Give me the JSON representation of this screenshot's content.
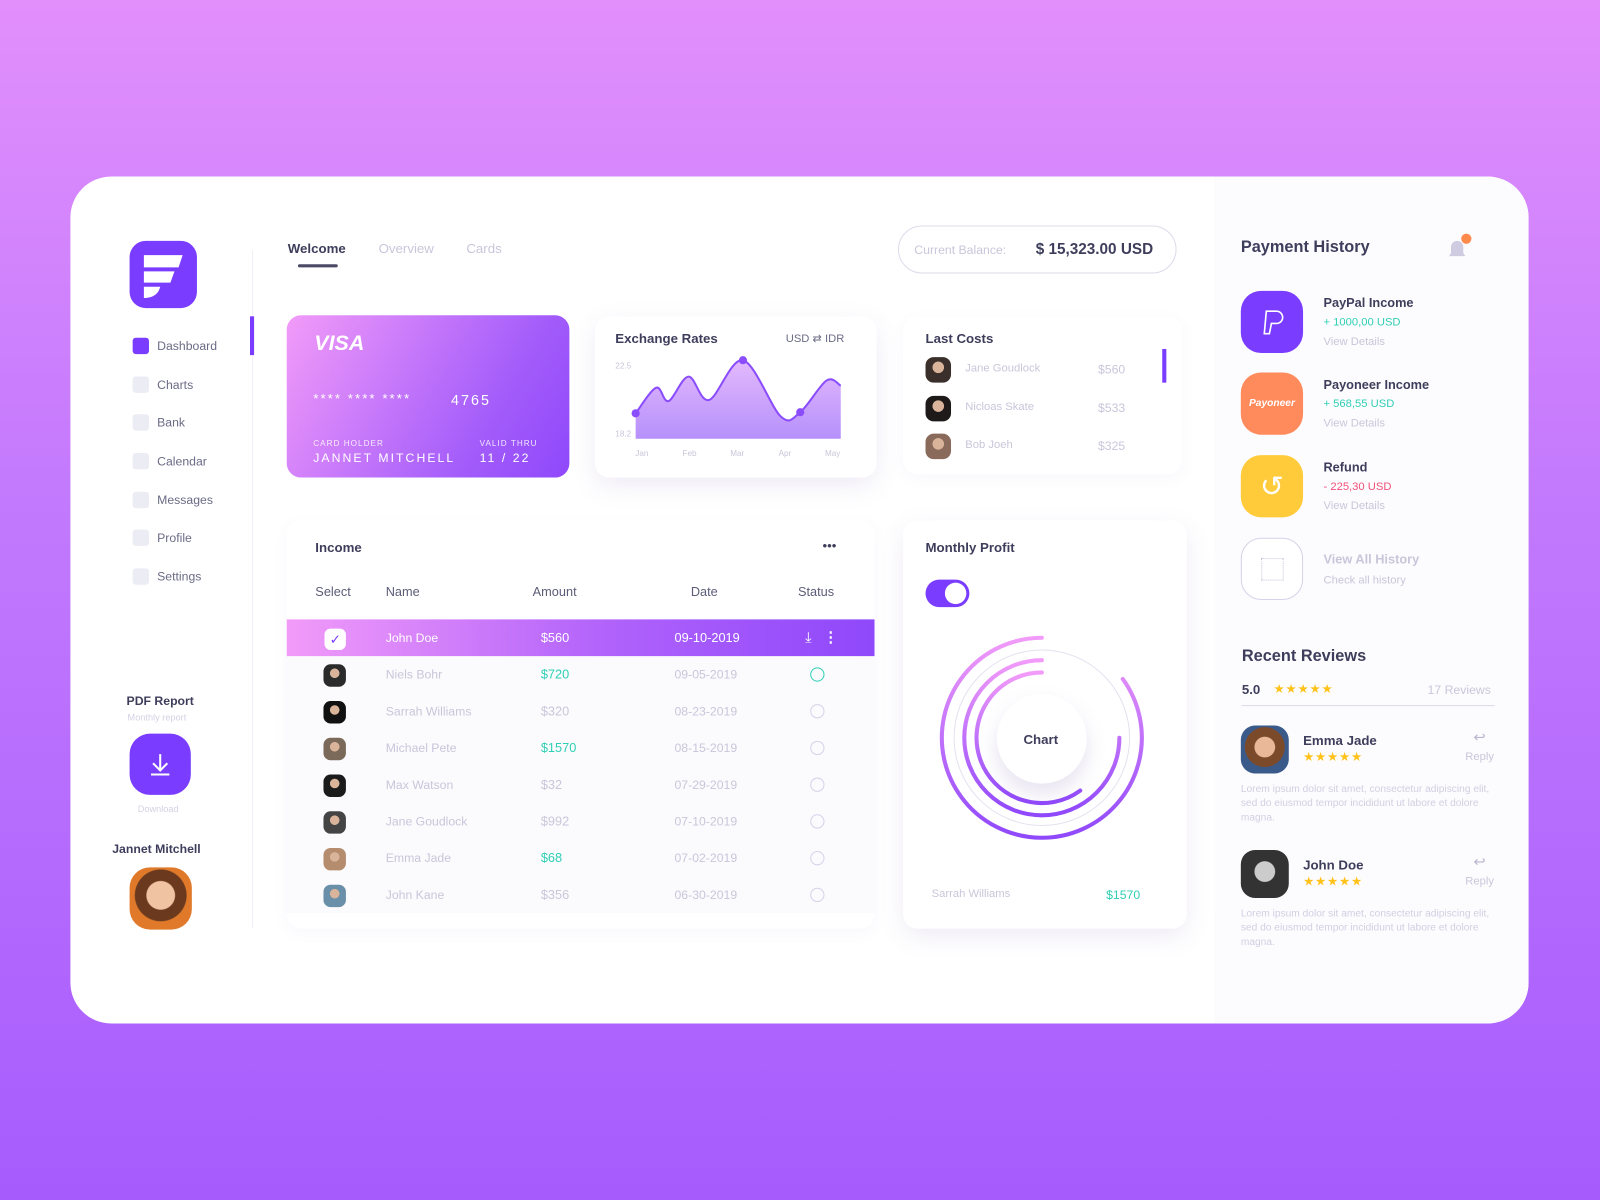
{
  "sidebar": {
    "items": [
      {
        "label": "Dashboard",
        "icon": "dashboard-icon",
        "active": true
      },
      {
        "label": "Charts",
        "icon": "pie-chart-icon"
      },
      {
        "label": "Bank",
        "icon": "credit-card-icon"
      },
      {
        "label": "Calendar",
        "icon": "calendar-icon"
      },
      {
        "label": "Messages",
        "icon": "chat-icon"
      },
      {
        "label": "Profile",
        "icon": "user-icon"
      },
      {
        "label": "Settings",
        "icon": "gear-icon"
      }
    ],
    "pdf": {
      "title": "PDF Report",
      "subtitle": "Monthly report",
      "button": "Download"
    },
    "user": "Jannet Mitchell"
  },
  "tabs": [
    "Welcome",
    "Overview",
    "Cards"
  ],
  "balance": {
    "label": "Current Balance:",
    "value": "$ 15,323.00 USD"
  },
  "visa": {
    "brand": "VISA",
    "number_mask": "**** **** ****",
    "last4": "4765",
    "holder_label": "CARD HOLDER",
    "holder": "JANNET MITCHELL",
    "valid_label": "VALID THRU",
    "valid": "11 / 22"
  },
  "exchange": {
    "title": "Exchange Rates",
    "pair": "USD ⇄ IDR"
  },
  "chart_data": {
    "type": "area",
    "categories": [
      "Jan",
      "Feb",
      "Mar",
      "Apr",
      "May"
    ],
    "yticks": [
      "22.5",
      "18.2"
    ],
    "ylim": [
      18.2,
      22.5
    ],
    "x": [
      -0.13,
      0.3,
      0.56,
      0.98,
      1.41,
      2.12,
      2.91,
      3.32,
      3.87,
      4.17
    ],
    "y": [
      19.48,
      21.09,
      20.25,
      21.79,
      20.32,
      22.82,
      19.29,
      19.55,
      21.54,
      21.22
    ],
    "markers": [
      0,
      5,
      7
    ],
    "color": "#8b4dfc"
  },
  "last_costs": {
    "title": "Last Costs",
    "items": [
      {
        "name": "Jane Goudlock",
        "amount": "$560"
      },
      {
        "name": "Nicloas Skate",
        "amount": "$533"
      },
      {
        "name": "Bob Joeh",
        "amount": "$325"
      }
    ]
  },
  "income": {
    "title": "Income",
    "menu": "•••",
    "columns": [
      "Select",
      "Name",
      "Amount",
      "Date",
      "Status"
    ],
    "rows": [
      {
        "name": "John Doe",
        "amount": "$560",
        "date": "09-10-2019",
        "selected": true
      },
      {
        "name": "Niels Bohr",
        "amount": "$720",
        "date": "09-05-2019",
        "green": true,
        "status": "active"
      },
      {
        "name": "Sarrah Williams",
        "amount": "$320",
        "date": "08-23-2019"
      },
      {
        "name": "Michael Pete",
        "amount": "$1570",
        "date": "08-15-2019",
        "green": true
      },
      {
        "name": "Max Watson",
        "amount": "$32",
        "date": "07-29-2019"
      },
      {
        "name": "Jane Goudlock",
        "amount": "$992",
        "date": "07-10-2019"
      },
      {
        "name": "Emma Jade",
        "amount": "$68",
        "date": "07-02-2019",
        "green": true
      },
      {
        "name": "John Kane",
        "amount": "$356",
        "date": "06-30-2019"
      }
    ]
  },
  "profit": {
    "title": "Monthly Profit",
    "toggle": true,
    "center": "Chart",
    "rings": [
      0.85,
      0.75,
      0.6
    ],
    "footer_name": "Sarrah Williams",
    "footer_amount": "$1570"
  },
  "payments": {
    "title": "Payment History",
    "items": [
      {
        "title": "PayPal Income",
        "amount": "+ 1000,00 USD",
        "link": "View Details",
        "color": "#7a3cff",
        "type": "in"
      },
      {
        "title": "Payoneer Income",
        "amount": "+ 568,55 USD",
        "link": "View Details",
        "color": "#ff8a5c",
        "logo": "Payoneer",
        "type": "in"
      },
      {
        "title": "Refund",
        "amount": "- 225,30 USD",
        "link": "View Details",
        "color": "#ffcb3a",
        "type": "out"
      }
    ],
    "all": {
      "title": "View All History",
      "sub": "Check all history"
    }
  },
  "reviews": {
    "title": "Recent Reviews",
    "rating": "5.0",
    "stars": "★★★★★",
    "count": "17 Reviews",
    "reply": "Reply",
    "items": [
      {
        "name": "Emma Jade",
        "text": "Lorem ipsum dolor sit amet, consectetur adipiscing elit, sed do eiusmod tempor incididunt ut labore et dolore magna."
      },
      {
        "name": "John Doe",
        "text": "Lorem ipsum dolor sit amet, consectetur adipiscing elit, sed do eiusmod tempor incididunt ut labore et dolore magna."
      }
    ]
  },
  "colors": {
    "accent": "#7a3cff",
    "green": "#2fcfb5",
    "red": "#f0507a"
  }
}
